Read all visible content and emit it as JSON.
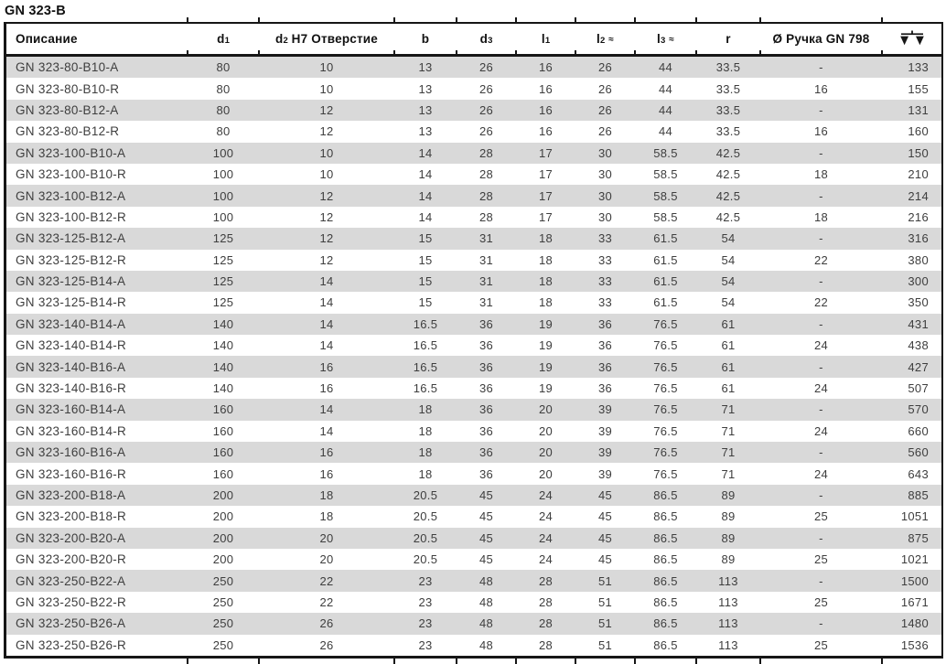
{
  "page_title": "GN 323-B",
  "colors": {
    "row_stripe": "#d9d9d9",
    "border": "#161616",
    "header_text": "#111111",
    "cell_text": "#3e3e3e"
  },
  "table": {
    "columns": [
      {
        "id": "description",
        "label": "Описание"
      },
      {
        "id": "d1",
        "label": "d",
        "sub": "1"
      },
      {
        "id": "d2",
        "label": "d",
        "sub": "2",
        "rest": " H7 Отверстие"
      },
      {
        "id": "b",
        "label": "b"
      },
      {
        "id": "d3",
        "label": "d",
        "sub": "3"
      },
      {
        "id": "l1",
        "label": "l",
        "sub": "1"
      },
      {
        "id": "l2",
        "label": "l",
        "sub": "2",
        "approx": "≈"
      },
      {
        "id": "l3",
        "label": "l",
        "sub": "3",
        "approx": "≈"
      },
      {
        "id": "r",
        "label": "r"
      },
      {
        "id": "handle",
        "label": "Ø Ручка GN 798"
      },
      {
        "id": "weight",
        "label": "",
        "icon": "scales-icon"
      }
    ],
    "rows": [
      [
        "GN 323-80-B10-A",
        "80",
        "10",
        "13",
        "26",
        "16",
        "26",
        "44",
        "33.5",
        "-",
        "133"
      ],
      [
        "GN 323-80-B10-R",
        "80",
        "10",
        "13",
        "26",
        "16",
        "26",
        "44",
        "33.5",
        "16",
        "155"
      ],
      [
        "GN 323-80-B12-A",
        "80",
        "12",
        "13",
        "26",
        "16",
        "26",
        "44",
        "33.5",
        "-",
        "131"
      ],
      [
        "GN 323-80-B12-R",
        "80",
        "12",
        "13",
        "26",
        "16",
        "26",
        "44",
        "33.5",
        "16",
        "160"
      ],
      [
        "GN 323-100-B10-A",
        "100",
        "10",
        "14",
        "28",
        "17",
        "30",
        "58.5",
        "42.5",
        "-",
        "150"
      ],
      [
        "GN 323-100-B10-R",
        "100",
        "10",
        "14",
        "28",
        "17",
        "30",
        "58.5",
        "42.5",
        "18",
        "210"
      ],
      [
        "GN 323-100-B12-A",
        "100",
        "12",
        "14",
        "28",
        "17",
        "30",
        "58.5",
        "42.5",
        "-",
        "214"
      ],
      [
        "GN 323-100-B12-R",
        "100",
        "12",
        "14",
        "28",
        "17",
        "30",
        "58.5",
        "42.5",
        "18",
        "216"
      ],
      [
        "GN 323-125-B12-A",
        "125",
        "12",
        "15",
        "31",
        "18",
        "33",
        "61.5",
        "54",
        "-",
        "316"
      ],
      [
        "GN 323-125-B12-R",
        "125",
        "12",
        "15",
        "31",
        "18",
        "33",
        "61.5",
        "54",
        "22",
        "380"
      ],
      [
        "GN 323-125-B14-A",
        "125",
        "14",
        "15",
        "31",
        "18",
        "33",
        "61.5",
        "54",
        "-",
        "300"
      ],
      [
        "GN 323-125-B14-R",
        "125",
        "14",
        "15",
        "31",
        "18",
        "33",
        "61.5",
        "54",
        "22",
        "350"
      ],
      [
        "GN 323-140-B14-A",
        "140",
        "14",
        "16.5",
        "36",
        "19",
        "36",
        "76.5",
        "61",
        "-",
        "431"
      ],
      [
        "GN 323-140-B14-R",
        "140",
        "14",
        "16.5",
        "36",
        "19",
        "36",
        "76.5",
        "61",
        "24",
        "438"
      ],
      [
        "GN 323-140-B16-A",
        "140",
        "16",
        "16.5",
        "36",
        "19",
        "36",
        "76.5",
        "61",
        "-",
        "427"
      ],
      [
        "GN 323-140-B16-R",
        "140",
        "16",
        "16.5",
        "36",
        "19",
        "36",
        "76.5",
        "61",
        "24",
        "507"
      ],
      [
        "GN 323-160-B14-A",
        "160",
        "14",
        "18",
        "36",
        "20",
        "39",
        "76.5",
        "71",
        "-",
        "570"
      ],
      [
        "GN 323-160-B14-R",
        "160",
        "14",
        "18",
        "36",
        "20",
        "39",
        "76.5",
        "71",
        "24",
        "660"
      ],
      [
        "GN 323-160-B16-A",
        "160",
        "16",
        "18",
        "36",
        "20",
        "39",
        "76.5",
        "71",
        "-",
        "560"
      ],
      [
        "GN 323-160-B16-R",
        "160",
        "16",
        "18",
        "36",
        "20",
        "39",
        "76.5",
        "71",
        "24",
        "643"
      ],
      [
        "GN 323-200-B18-A",
        "200",
        "18",
        "20.5",
        "45",
        "24",
        "45",
        "86.5",
        "89",
        "-",
        "885"
      ],
      [
        "GN 323-200-B18-R",
        "200",
        "18",
        "20.5",
        "45",
        "24",
        "45",
        "86.5",
        "89",
        "25",
        "1051"
      ],
      [
        "GN 323-200-B20-A",
        "200",
        "20",
        "20.5",
        "45",
        "24",
        "45",
        "86.5",
        "89",
        "-",
        "875"
      ],
      [
        "GN 323-200-B20-R",
        "200",
        "20",
        "20.5",
        "45",
        "24",
        "45",
        "86.5",
        "89",
        "25",
        "1021"
      ],
      [
        "GN 323-250-B22-A",
        "250",
        "22",
        "23",
        "48",
        "28",
        "51",
        "86.5",
        "113",
        "-",
        "1500"
      ],
      [
        "GN 323-250-B22-R",
        "250",
        "22",
        "23",
        "48",
        "28",
        "51",
        "86.5",
        "113",
        "25",
        "1671"
      ],
      [
        "GN 323-250-B26-A",
        "250",
        "26",
        "23",
        "48",
        "28",
        "51",
        "86.5",
        "113",
        "-",
        "1480"
      ],
      [
        "GN 323-250-B26-R",
        "250",
        "26",
        "23",
        "48",
        "28",
        "51",
        "86.5",
        "113",
        "25",
        "1536"
      ]
    ]
  }
}
